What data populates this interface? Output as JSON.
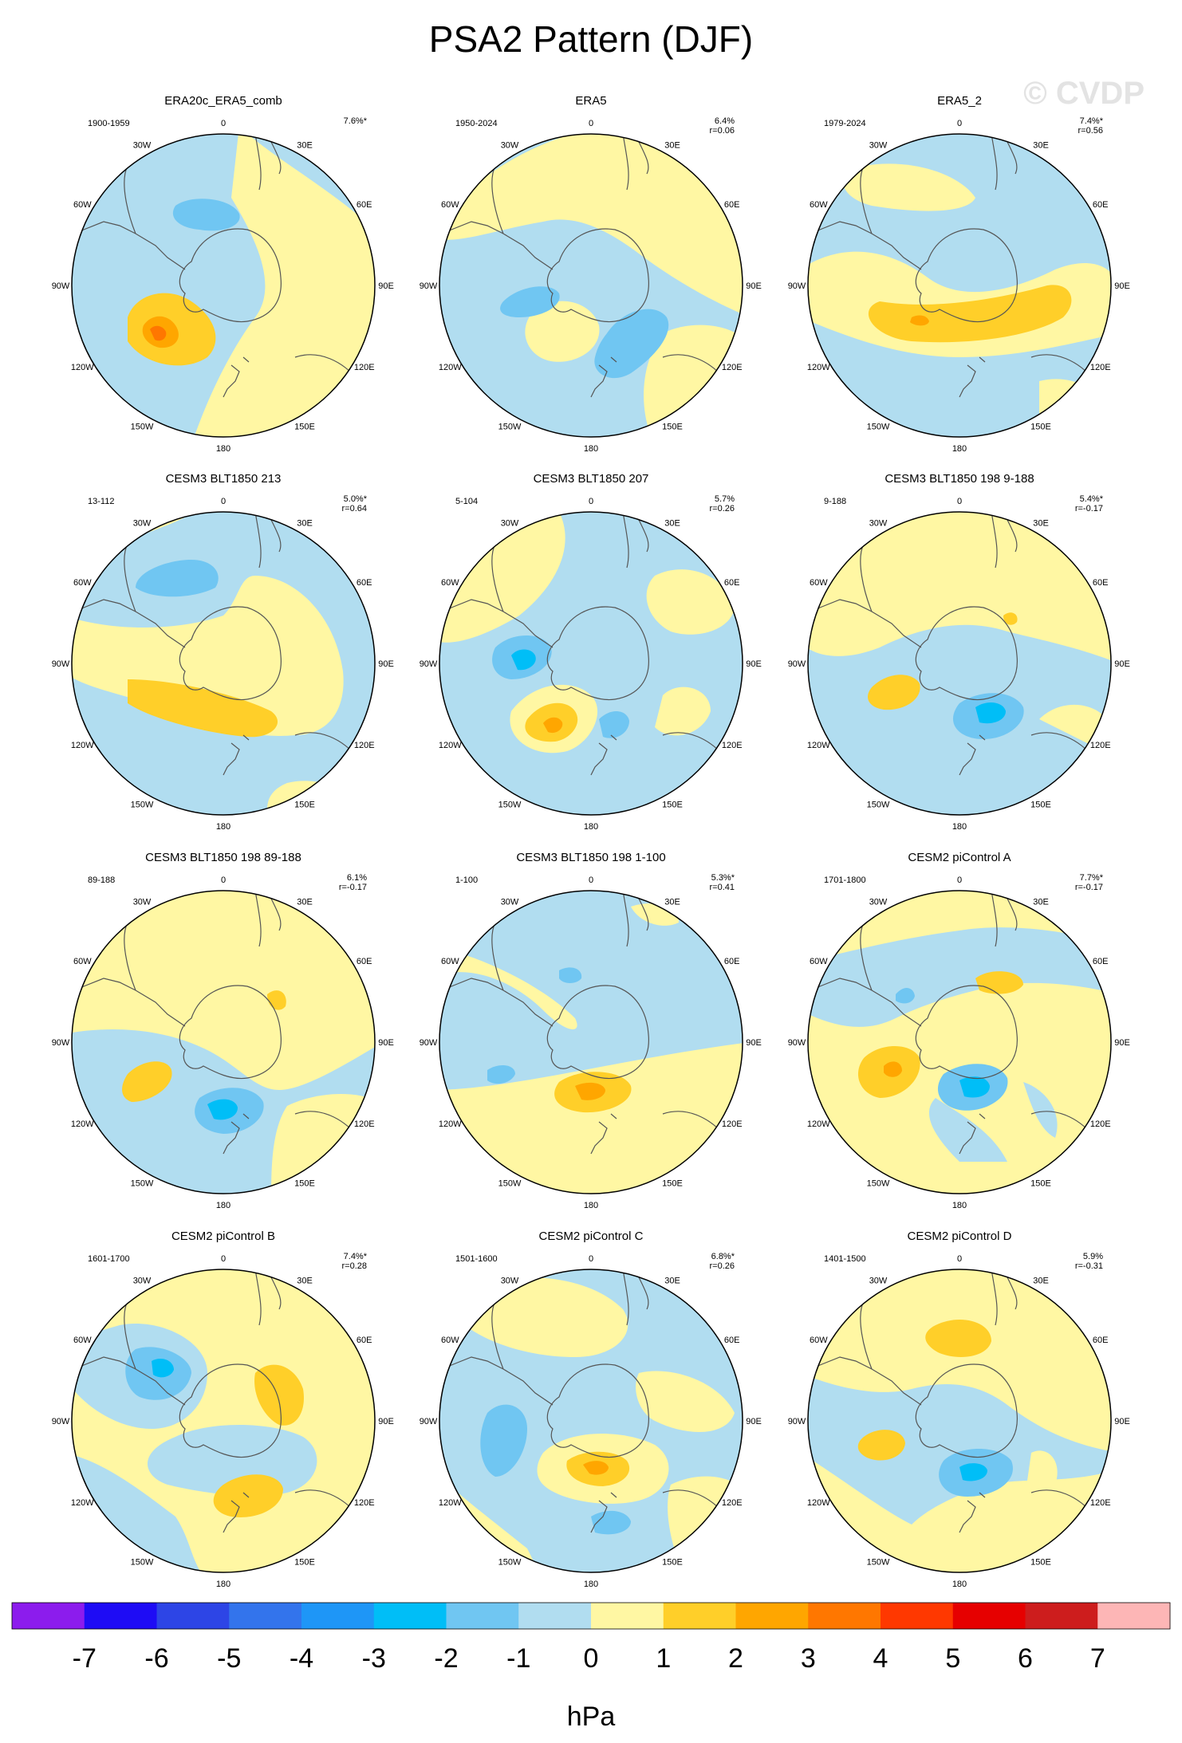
{
  "title": "PSA2 Pattern (DJF)",
  "watermark": "© CVDP",
  "colors": [
    "#8c1ced",
    "#1e0cf5",
    "#2d45e6",
    "#3374ec",
    "#1e96f7",
    "#00bef7",
    "#70c6f2",
    "#b1ddf0",
    "#fff7a3",
    "#ffcf29",
    "#ffa600",
    "#ff7700",
    "#ff3800",
    "#e60000",
    "#cd1d1d",
    "#fdb6b6"
  ],
  "levels": [
    "-7",
    "-6",
    "-5",
    "-4",
    "-3",
    "-2",
    "-1",
    "0",
    "1",
    "2",
    "3",
    "4",
    "5",
    "6",
    "7"
  ],
  "units": "hPa",
  "lon_labels": [
    "0",
    "30E",
    "60E",
    "90E",
    "120E",
    "150E",
    "180",
    "150W",
    "120W",
    "90W",
    "60W",
    "30W"
  ],
  "panels": [
    {
      "title": "ERA20c_ERA5_comb",
      "period": "1900-1959",
      "pct": "7.6%*",
      "r": ""
    },
    {
      "title": "ERA5",
      "period": "1950-2024",
      "pct": "6.4%",
      "r": "r=0.06"
    },
    {
      "title": "ERA5_2",
      "period": "1979-2024",
      "pct": "7.4%*",
      "r": "r=0.56"
    },
    {
      "title": "CESM3 BLT1850 213",
      "period": "13-112",
      "pct": "5.0%*",
      "r": "r=0.64"
    },
    {
      "title": "CESM3 BLT1850 207",
      "period": "5-104",
      "pct": "5.7%",
      "r": "r=0.26"
    },
    {
      "title": "CESM3 BLT1850 198 9-188",
      "period": "9-188",
      "pct": "5.4%*",
      "r": "r=-0.17"
    },
    {
      "title": "CESM3 BLT1850 198 89-188",
      "period": "89-188",
      "pct": "6.1%",
      "r": "r=-0.17"
    },
    {
      "title": "CESM3 BLT1850 198 1-100",
      "period": "1-100",
      "pct": "5.3%*",
      "r": "r=0.41"
    },
    {
      "title": "CESM2 piControl A",
      "period": "1701-1800",
      "pct": "7.7%*",
      "r": "r=-0.17"
    },
    {
      "title": "CESM2 piControl B",
      "period": "1601-1700",
      "pct": "7.4%*",
      "r": "r=0.28"
    },
    {
      "title": "CESM2 piControl C",
      "period": "1501-1600",
      "pct": "6.8%*",
      "r": "r=0.26"
    },
    {
      "title": "CESM2 piControl D",
      "period": "1401-1500",
      "pct": "5.9%",
      "r": "r=-0.31"
    }
  ]
}
